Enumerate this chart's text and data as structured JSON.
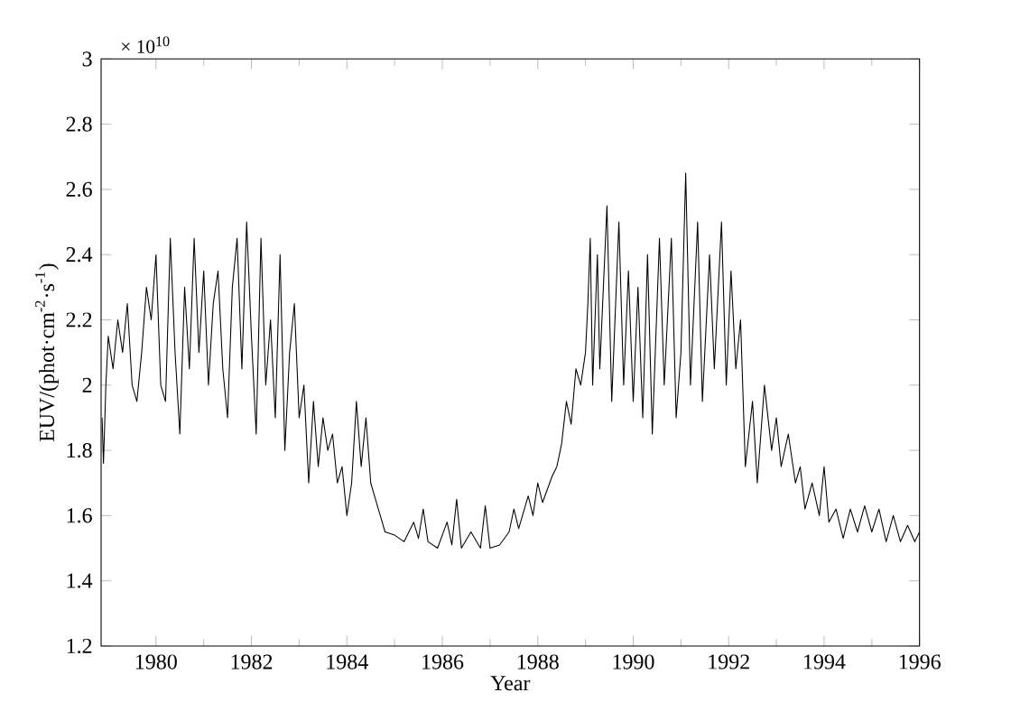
{
  "chart_data": {
    "type": "line",
    "xlabel": "Year",
    "ylabel": "EUV/(phot·cm$^{-2}$·s$^{-1}$)",
    "annotations": [
      "× 10$^{10}$"
    ],
    "xlim": [
      1978.85,
      1996
    ],
    "ylim": [
      1.2,
      3
    ],
    "xticks": [
      1980,
      1982,
      1984,
      1986,
      1988,
      1990,
      1992,
      1994,
      1996
    ],
    "yticks": [
      1.2,
      1.4,
      1.6,
      1.8,
      2,
      2.2,
      2.4,
      2.6,
      2.8,
      3
    ],
    "marker": "none",
    "line_style": "solid",
    "series": [
      {
        "color": "#000000",
        "x": [
          1978.87,
          1978.9,
          1978.95,
          1979.0,
          1979.1,
          1979.2,
          1979.3,
          1979.4,
          1979.5,
          1979.6,
          1979.7,
          1979.8,
          1979.9,
          1980.0,
          1980.1,
          1980.2,
          1980.3,
          1980.4,
          1980.5,
          1980.6,
          1980.7,
          1980.8,
          1980.9,
          1981.0,
          1981.1,
          1981.2,
          1981.3,
          1981.4,
          1981.5,
          1981.6,
          1981.7,
          1981.8,
          1981.9,
          1982.0,
          1982.1,
          1982.2,
          1982.3,
          1982.4,
          1982.5,
          1982.6,
          1982.7,
          1982.8,
          1982.9,
          1983.0,
          1983.1,
          1983.2,
          1983.3,
          1983.4,
          1983.5,
          1983.6,
          1983.7,
          1983.8,
          1983.9,
          1984.0,
          1984.1,
          1984.2,
          1984.3,
          1984.4,
          1984.5,
          1984.6,
          1984.7,
          1984.8,
          1985.0,
          1985.2,
          1985.4,
          1985.5,
          1985.6,
          1985.7,
          1985.9,
          1986.1,
          1986.2,
          1986.3,
          1986.4,
          1986.6,
          1986.8,
          1986.9,
          1987.0,
          1987.2,
          1987.4,
          1987.5,
          1987.6,
          1987.8,
          1987.9,
          1988.0,
          1988.1,
          1988.3,
          1988.4,
          1988.5,
          1988.6,
          1988.7,
          1988.8,
          1988.9,
          1989.0,
          1989.05,
          1989.1,
          1989.15,
          1989.25,
          1989.3,
          1989.45,
          1989.55,
          1989.7,
          1989.8,
          1989.9,
          1990.0,
          1990.1,
          1990.2,
          1990.3,
          1990.4,
          1990.55,
          1990.65,
          1990.8,
          1990.9,
          1991.0,
          1991.1,
          1991.2,
          1991.35,
          1991.45,
          1991.6,
          1991.7,
          1991.85,
          1991.95,
          1992.05,
          1992.15,
          1992.25,
          1992.35,
          1992.5,
          1992.6,
          1992.75,
          1992.9,
          1993.0,
          1993.1,
          1993.25,
          1993.4,
          1993.5,
          1993.6,
          1993.75,
          1993.9,
          1994.0,
          1994.1,
          1994.25,
          1994.4,
          1994.55,
          1994.7,
          1994.85,
          1995.0,
          1995.15,
          1995.3,
          1995.45,
          1995.6,
          1995.75,
          1995.9,
          1996.0
        ],
        "values": [
          1.9,
          1.76,
          2.0,
          2.15,
          2.05,
          2.2,
          2.1,
          2.25,
          2.0,
          1.95,
          2.1,
          2.3,
          2.2,
          2.4,
          2.0,
          1.95,
          2.45,
          2.1,
          1.85,
          2.3,
          2.05,
          2.45,
          2.1,
          2.35,
          2.0,
          2.25,
          2.35,
          2.05,
          1.9,
          2.3,
          2.45,
          2.05,
          2.5,
          2.15,
          1.85,
          2.45,
          2.0,
          2.2,
          1.9,
          2.4,
          1.8,
          2.1,
          2.25,
          1.9,
          2.0,
          1.7,
          1.95,
          1.75,
          1.9,
          1.8,
          1.85,
          1.7,
          1.75,
          1.6,
          1.7,
          1.95,
          1.75,
          1.9,
          1.7,
          1.65,
          1.6,
          1.55,
          1.54,
          1.52,
          1.58,
          1.53,
          1.62,
          1.52,
          1.5,
          1.58,
          1.51,
          1.65,
          1.5,
          1.55,
          1.5,
          1.63,
          1.5,
          1.51,
          1.55,
          1.62,
          1.56,
          1.66,
          1.6,
          1.7,
          1.64,
          1.72,
          1.75,
          1.82,
          1.95,
          1.88,
          2.05,
          2.0,
          2.1,
          2.25,
          2.45,
          2.0,
          2.4,
          2.05,
          2.55,
          1.95,
          2.5,
          2.0,
          2.35,
          1.95,
          2.3,
          1.9,
          2.4,
          1.85,
          2.45,
          2.0,
          2.45,
          1.9,
          2.1,
          2.65,
          2.0,
          2.5,
          1.95,
          2.4,
          2.05,
          2.5,
          2.0,
          2.35,
          2.05,
          2.2,
          1.75,
          1.95,
          1.7,
          2.0,
          1.8,
          1.9,
          1.75,
          1.85,
          1.7,
          1.75,
          1.62,
          1.7,
          1.6,
          1.75,
          1.58,
          1.62,
          1.53,
          1.62,
          1.55,
          1.63,
          1.55,
          1.62,
          1.52,
          1.6,
          1.52,
          1.57,
          1.52,
          1.55
        ]
      }
    ]
  }
}
